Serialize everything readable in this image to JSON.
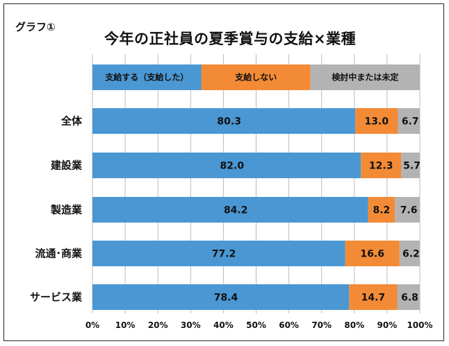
{
  "tag": "グラフ①",
  "chart_data": {
    "type": "bar",
    "orientation": "horizontal",
    "stacked": true,
    "title": "今年の正社員の夏季賞与の支給×業種",
    "categories": [
      "全体",
      "建設業",
      "製造業",
      "流通･商業",
      "サービス業"
    ],
    "series": [
      {
        "name": "支給する（支給した）",
        "values": [
          80.3,
          82.0,
          84.2,
          77.2,
          78.4
        ],
        "labels": [
          "80.3",
          "82.0",
          "84.2",
          "77.2",
          "78.4"
        ]
      },
      {
        "name": "支給しない",
        "values": [
          13.0,
          12.3,
          8.2,
          16.6,
          14.7
        ],
        "labels": [
          "13.0",
          "12.3",
          "8.2",
          "16.6",
          "14.7"
        ]
      },
      {
        "name": "検討中または未定",
        "values": [
          6.7,
          5.7,
          7.6,
          6.2,
          6.8
        ],
        "labels": [
          "6.7",
          "5.7",
          "7.6",
          "6.2",
          "6.8"
        ]
      }
    ],
    "legend_values": [
      33.3,
      33.3,
      33.4
    ],
    "xlim": [
      0,
      100
    ],
    "xticks": [
      "0%",
      "10%",
      "20%",
      "30%",
      "40%",
      "50%",
      "60%",
      "70%",
      "80%",
      "90%",
      "100%"
    ],
    "grid": true,
    "legend_position": "top"
  },
  "colors": {
    "series": [
      "#4a97d3",
      "#f38a35",
      "#b3b3b3"
    ],
    "label_text": [
      "#111111",
      "#111111",
      "#111111"
    ],
    "grid": "#bbbbbb"
  }
}
